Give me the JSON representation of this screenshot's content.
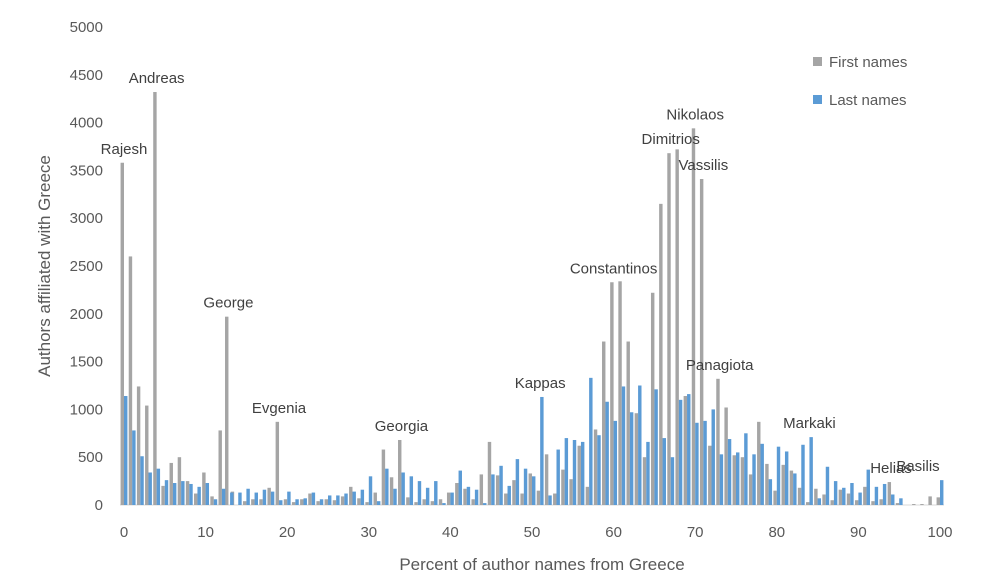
{
  "chart_data": {
    "type": "bar",
    "xlabel": "Percent of author names from Greece",
    "ylabel": "Authors affiliated with Greece",
    "xlim": [
      0,
      100
    ],
    "ylim": [
      0,
      5000
    ],
    "x_ticks": [
      0,
      10,
      20,
      30,
      40,
      50,
      60,
      70,
      80,
      90,
      100
    ],
    "y_ticks": [
      0,
      500,
      1000,
      1500,
      2000,
      2500,
      3000,
      3500,
      4000,
      4500,
      5000
    ],
    "grid": false,
    "legend_position": "top-right",
    "colors": {
      "First names": "#a5a5a5",
      "Last names": "#5b9bd5"
    },
    "series": [
      {
        "name": "First names",
        "points": [
          [
            0,
            3580
          ],
          [
            1,
            2600
          ],
          [
            2,
            1240
          ],
          [
            3,
            1040
          ],
          [
            4,
            4320
          ],
          [
            5,
            200
          ],
          [
            6,
            440
          ],
          [
            7,
            500
          ],
          [
            8,
            250
          ],
          [
            9,
            120
          ],
          [
            10,
            340
          ],
          [
            11,
            90
          ],
          [
            12,
            780
          ],
          [
            12.8,
            1970
          ],
          [
            13.5,
            140
          ],
          [
            15,
            40
          ],
          [
            16,
            60
          ],
          [
            17,
            60
          ],
          [
            18,
            180
          ],
          [
            19,
            870
          ],
          [
            20,
            60
          ],
          [
            21,
            30
          ],
          [
            22,
            60
          ],
          [
            23,
            120
          ],
          [
            24,
            40
          ],
          [
            25,
            60
          ],
          [
            26,
            50
          ],
          [
            27,
            90
          ],
          [
            28,
            190
          ],
          [
            29,
            70
          ],
          [
            30,
            30
          ],
          [
            31,
            130
          ],
          [
            32,
            580
          ],
          [
            33,
            290
          ],
          [
            34,
            680
          ],
          [
            35,
            80
          ],
          [
            36,
            30
          ],
          [
            37,
            60
          ],
          [
            38,
            40
          ],
          [
            39,
            60
          ],
          [
            40,
            130
          ],
          [
            41,
            230
          ],
          [
            42,
            170
          ],
          [
            43,
            60
          ],
          [
            44,
            320
          ],
          [
            45,
            660
          ],
          [
            46,
            310
          ],
          [
            47,
            120
          ],
          [
            48,
            260
          ],
          [
            49,
            120
          ],
          [
            50,
            330
          ],
          [
            51,
            150
          ],
          [
            52,
            530
          ],
          [
            53,
            120
          ],
          [
            54,
            370
          ],
          [
            55,
            270
          ],
          [
            56,
            620
          ],
          [
            57,
            190
          ],
          [
            58,
            790
          ],
          [
            59,
            1710
          ],
          [
            60,
            2330
          ],
          [
            61,
            2340
          ],
          [
            62,
            1710
          ],
          [
            63,
            960
          ],
          [
            64,
            500
          ],
          [
            65,
            2220
          ],
          [
            66,
            3150
          ],
          [
            67,
            3680
          ],
          [
            68,
            3720
          ],
          [
            69,
            1140
          ],
          [
            70,
            3940
          ],
          [
            71,
            3410
          ],
          [
            72,
            620
          ],
          [
            73,
            1320
          ],
          [
            74,
            1020
          ],
          [
            75,
            520
          ],
          [
            76,
            500
          ],
          [
            77,
            320
          ],
          [
            78,
            870
          ],
          [
            79,
            430
          ],
          [
            80,
            150
          ],
          [
            81,
            420
          ],
          [
            82,
            360
          ],
          [
            83,
            180
          ],
          [
            84,
            30
          ],
          [
            85,
            170
          ],
          [
            86,
            110
          ],
          [
            87,
            50
          ],
          [
            88,
            160
          ],
          [
            89,
            120
          ],
          [
            90,
            50
          ],
          [
            91,
            190
          ],
          [
            92,
            40
          ],
          [
            93,
            60
          ],
          [
            94,
            240
          ],
          [
            95,
            20
          ],
          [
            97,
            10
          ],
          [
            98,
            10
          ],
          [
            99,
            90
          ],
          [
            100,
            80
          ]
        ]
      },
      {
        "name": "Last names",
        "points": [
          [
            0,
            1140
          ],
          [
            1,
            780
          ],
          [
            2,
            510
          ],
          [
            3,
            340
          ],
          [
            4,
            380
          ],
          [
            5,
            260
          ],
          [
            6,
            230
          ],
          [
            7,
            250
          ],
          [
            8,
            220
          ],
          [
            9,
            190
          ],
          [
            10,
            230
          ],
          [
            11,
            60
          ],
          [
            12,
            170
          ],
          [
            13,
            130
          ],
          [
            14,
            130
          ],
          [
            15,
            170
          ],
          [
            16,
            130
          ],
          [
            17,
            160
          ],
          [
            18,
            140
          ],
          [
            19,
            50
          ],
          [
            20,
            140
          ],
          [
            21,
            60
          ],
          [
            22,
            70
          ],
          [
            23,
            130
          ],
          [
            24,
            60
          ],
          [
            25,
            100
          ],
          [
            26,
            100
          ],
          [
            27,
            120
          ],
          [
            28,
            140
          ],
          [
            29,
            160
          ],
          [
            30,
            300
          ],
          [
            31,
            40
          ],
          [
            32,
            380
          ],
          [
            33,
            170
          ],
          [
            34,
            340
          ],
          [
            35,
            300
          ],
          [
            36,
            250
          ],
          [
            37,
            180
          ],
          [
            38,
            250
          ],
          [
            39,
            20
          ],
          [
            40,
            130
          ],
          [
            41,
            360
          ],
          [
            42,
            190
          ],
          [
            43,
            160
          ],
          [
            44,
            20
          ],
          [
            45,
            320
          ],
          [
            46,
            410
          ],
          [
            47,
            200
          ],
          [
            48,
            480
          ],
          [
            49,
            380
          ],
          [
            50,
            300
          ],
          [
            51,
            1130
          ],
          [
            52,
            100
          ],
          [
            53,
            580
          ],
          [
            54,
            700
          ],
          [
            55,
            680
          ],
          [
            56,
            660
          ],
          [
            57,
            1330
          ],
          [
            58,
            730
          ],
          [
            59,
            1080
          ],
          [
            60,
            880
          ],
          [
            61,
            1240
          ],
          [
            62,
            970
          ],
          [
            63,
            1250
          ],
          [
            64,
            660
          ],
          [
            65,
            1210
          ],
          [
            66,
            700
          ],
          [
            67,
            500
          ],
          [
            68,
            1100
          ],
          [
            69,
            1160
          ],
          [
            70,
            860
          ],
          [
            71,
            880
          ],
          [
            72,
            1000
          ],
          [
            73,
            530
          ],
          [
            74,
            690
          ],
          [
            75,
            550
          ],
          [
            76,
            750
          ],
          [
            77,
            530
          ],
          [
            78,
            640
          ],
          [
            79,
            270
          ],
          [
            80,
            610
          ],
          [
            81,
            560
          ],
          [
            82,
            330
          ],
          [
            83,
            630
          ],
          [
            84,
            710
          ],
          [
            85,
            70
          ],
          [
            86,
            400
          ],
          [
            87,
            250
          ],
          [
            88,
            180
          ],
          [
            89,
            230
          ],
          [
            90,
            130
          ],
          [
            91,
            370
          ],
          [
            92,
            190
          ],
          [
            93,
            220
          ],
          [
            94,
            110
          ],
          [
            95,
            70
          ],
          [
            100,
            260
          ]
        ]
      }
    ],
    "annotations": [
      {
        "text": "Rajesh",
        "x": 0,
        "y": 3580
      },
      {
        "text": "Andreas",
        "x": 4,
        "y": 4320
      },
      {
        "text": "George",
        "x": 12.8,
        "y": 1970
      },
      {
        "text": "Evgenia",
        "x": 19,
        "y": 870
      },
      {
        "text": "Georgia",
        "x": 34,
        "y": 680
      },
      {
        "text": "Kappas",
        "x": 51,
        "y": 1130
      },
      {
        "text": "Constantinos",
        "x": 60,
        "y": 2330
      },
      {
        "text": "Dimitrios",
        "x": 67,
        "y": 3680
      },
      {
        "text": "Nikolaos",
        "x": 70,
        "y": 3940
      },
      {
        "text": "Vassilis",
        "x": 71,
        "y": 3410
      },
      {
        "text": "Panagiota",
        "x": 73,
        "y": 1320
      },
      {
        "text": "Markaki",
        "x": 84,
        "y": 710
      },
      {
        "text": "Helias",
        "x": 94,
        "y": 240
      },
      {
        "text": "Basilis",
        "x": 100,
        "y": 260
      }
    ]
  }
}
